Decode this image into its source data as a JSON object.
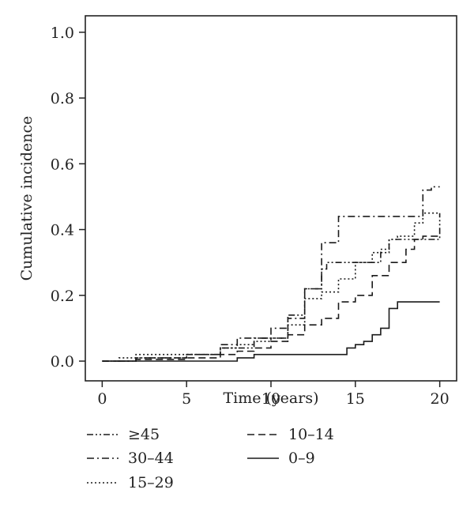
{
  "chart_data": {
    "type": "line",
    "step": true,
    "xlabel": "Time (years)",
    "ylabel": "Cumulative incidence",
    "xlim": [
      -1,
      21
    ],
    "ylim": [
      -0.06,
      1.05
    ],
    "xticks": [
      "0",
      "5",
      "10",
      "15",
      "20"
    ],
    "yticks": [
      "0.0",
      "0.2",
      "0.4",
      "0.6",
      "0.8",
      "1.0"
    ],
    "grid": false,
    "legend_position": "bottom",
    "series": [
      {
        "name": "≥45",
        "dash": "dash-dot-dot",
        "x": [
          0,
          2,
          5,
          7,
          9,
          11,
          12,
          13,
          13.3,
          14,
          15,
          16,
          16.5,
          17,
          19,
          20
        ],
        "y": [
          0,
          0.01,
          0.02,
          0.04,
          0.07,
          0.14,
          0.22,
          0.28,
          0.3,
          0.3,
          0.3,
          0.3,
          0.34,
          0.37,
          0.37,
          0.45
        ]
      },
      {
        "name": "30–44",
        "dash": "dash-dot",
        "x": [
          0,
          2,
          5,
          7,
          8,
          9,
          10,
          11,
          12,
          13,
          14,
          15,
          18,
          19,
          19.5,
          20
        ],
        "y": [
          0,
          0.01,
          0.02,
          0.05,
          0.07,
          0.07,
          0.1,
          0.13,
          0.22,
          0.36,
          0.44,
          0.44,
          0.44,
          0.52,
          0.53,
          0.53
        ]
      },
      {
        "name": "15–29",
        "dash": "dotted",
        "x": [
          0,
          1,
          2,
          5,
          7,
          8,
          9,
          10,
          11,
          12,
          13,
          14,
          15,
          16,
          17,
          17.5,
          18,
          18.5,
          19,
          20
        ],
        "y": [
          0,
          0.01,
          0.02,
          0.02,
          0.04,
          0.05,
          0.06,
          0.07,
          0.11,
          0.19,
          0.21,
          0.25,
          0.3,
          0.33,
          0.37,
          0.38,
          0.38,
          0.42,
          0.45,
          0.45
        ]
      },
      {
        "name": "10–14",
        "dash": "dashed",
        "x": [
          0,
          2,
          5,
          7,
          8,
          9,
          10,
          11,
          12,
          13,
          14,
          15,
          16,
          17,
          18,
          18.5,
          19,
          20
        ],
        "y": [
          0,
          0.005,
          0.01,
          0.02,
          0.03,
          0.04,
          0.06,
          0.08,
          0.11,
          0.13,
          0.18,
          0.2,
          0.26,
          0.3,
          0.34,
          0.37,
          0.38,
          0.38
        ]
      },
      {
        "name": "0–9",
        "dash": "solid",
        "x": [
          0,
          8,
          9,
          14,
          14.5,
          15,
          15.5,
          16,
          16.5,
          17,
          17.5,
          18,
          20
        ],
        "y": [
          0,
          0.01,
          0.02,
          0.02,
          0.04,
          0.05,
          0.06,
          0.08,
          0.1,
          0.16,
          0.18,
          0.18,
          0.18
        ]
      }
    ]
  }
}
